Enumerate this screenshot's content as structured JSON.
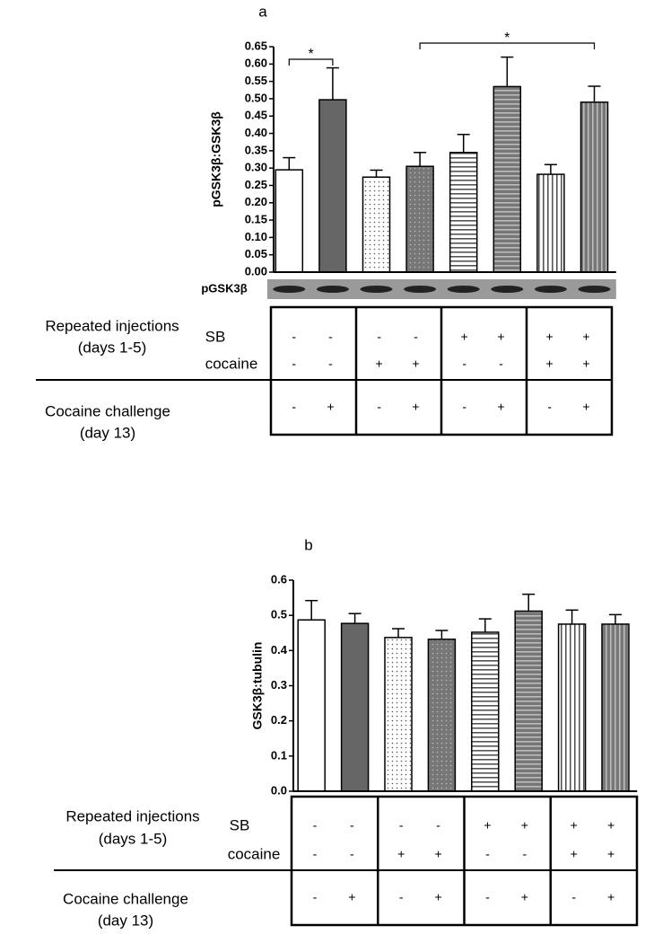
{
  "chart_data": [
    {
      "type": "bar",
      "title": "a",
      "ylabel": "pGSK3β:GSK3β",
      "values": [
        0.295,
        0.497,
        0.274,
        0.305,
        0.345,
        0.535,
        0.282,
        0.49
      ],
      "errors": [
        0.035,
        0.092,
        0.02,
        0.04,
        0.052,
        0.085,
        0.028,
        0.046
      ],
      "colors": [
        "#ffffff",
        "#666666",
        "#ffffff",
        "#777777",
        "#ffffff",
        "#777777",
        "#ffffff",
        "#777777"
      ],
      "patterns": [
        "none",
        "none",
        "dots",
        "dots",
        "hlines",
        "hlines",
        "vlines",
        "vlines"
      ],
      "ylim": [
        0,
        0.65
      ],
      "yticks": [
        {
          "value": 0,
          "label": "0.00"
        },
        0.05,
        {
          "value": 0.1,
          "label": "0.10"
        },
        0.15,
        {
          "value": 0.2,
          "label": "0.20"
        },
        0.25,
        {
          "value": 0.3,
          "label": "0.30"
        },
        0.35,
        {
          "value": 0.4,
          "label": "0.40"
        },
        0.45,
        {
          "value": 0.5,
          "label": "0.50"
        },
        0.55,
        {
          "value": 0.6,
          "label": "0.60"
        },
        0.65
      ],
      "significance": [
        {
          "label": "*",
          "bars": [
            0,
            1
          ]
        },
        {
          "label": "*",
          "bars": [
            3,
            7
          ]
        }
      ],
      "blot_label": "pGSK3β",
      "table": {
        "sections": [
          {
            "label": [
              "Repeated injections",
              "(days 1-5)"
            ],
            "rows": [
              {
                "label": "SB",
                "cells": [
                  "-",
                  "-",
                  "-",
                  "-",
                  "+",
                  "+",
                  "+",
                  "+"
                ]
              },
              {
                "label": "cocaine",
                "cells": [
                  "-",
                  "-",
                  "+",
                  "+",
                  "-",
                  "-",
                  "+",
                  "+"
                ]
              }
            ]
          },
          {
            "label": [
              "Cocaine challenge",
              "(day 13)"
            ],
            "rows": [
              {
                "cells": [
                  "-",
                  "+",
                  "-",
                  "+",
                  "-",
                  "+",
                  "-",
                  "+"
                ]
              }
            ]
          }
        ]
      }
    },
    {
      "type": "bar",
      "title": "b",
      "ylabel": "GSK3β:tubulin",
      "values": [
        0.487,
        0.477,
        0.437,
        0.432,
        0.452,
        0.512,
        0.475,
        0.475
      ],
      "errors": [
        0.055,
        0.028,
        0.025,
        0.025,
        0.038,
        0.048,
        0.04,
        0.027
      ],
      "colors": [
        "#ffffff",
        "#666666",
        "#ffffff",
        "#777777",
        "#ffffff",
        "#777777",
        "#ffffff",
        "#777777"
      ],
      "patterns": [
        "none",
        "none",
        "dots",
        "dots",
        "hlines",
        "hlines",
        "vlines",
        "vlines"
      ],
      "ylim": [
        0,
        0.6
      ],
      "yticks": [
        {
          "value": 0,
          "label": "0.0"
        },
        0.1,
        0.2,
        0.3,
        0.4,
        0.5,
        0.6
      ],
      "table": {
        "sections": [
          {
            "label": [
              "Repeated injections",
              "(days 1-5)"
            ],
            "rows": [
              {
                "label": "SB",
                "cells": [
                  "-",
                  "-",
                  "-",
                  "-",
                  "+",
                  "+",
                  "+",
                  "+"
                ]
              },
              {
                "label": "cocaine",
                "cells": [
                  "-",
                  "-",
                  "+",
                  "+",
                  "-",
                  "-",
                  "+",
                  "+"
                ]
              }
            ]
          },
          {
            "label": [
              "Cocaine challenge",
              "(day 13)"
            ],
            "rows": [
              {
                "cells": [
                  "-",
                  "+",
                  "-",
                  "+",
                  "-",
                  "+",
                  "-",
                  "+"
                ]
              }
            ]
          }
        ]
      }
    }
  ]
}
